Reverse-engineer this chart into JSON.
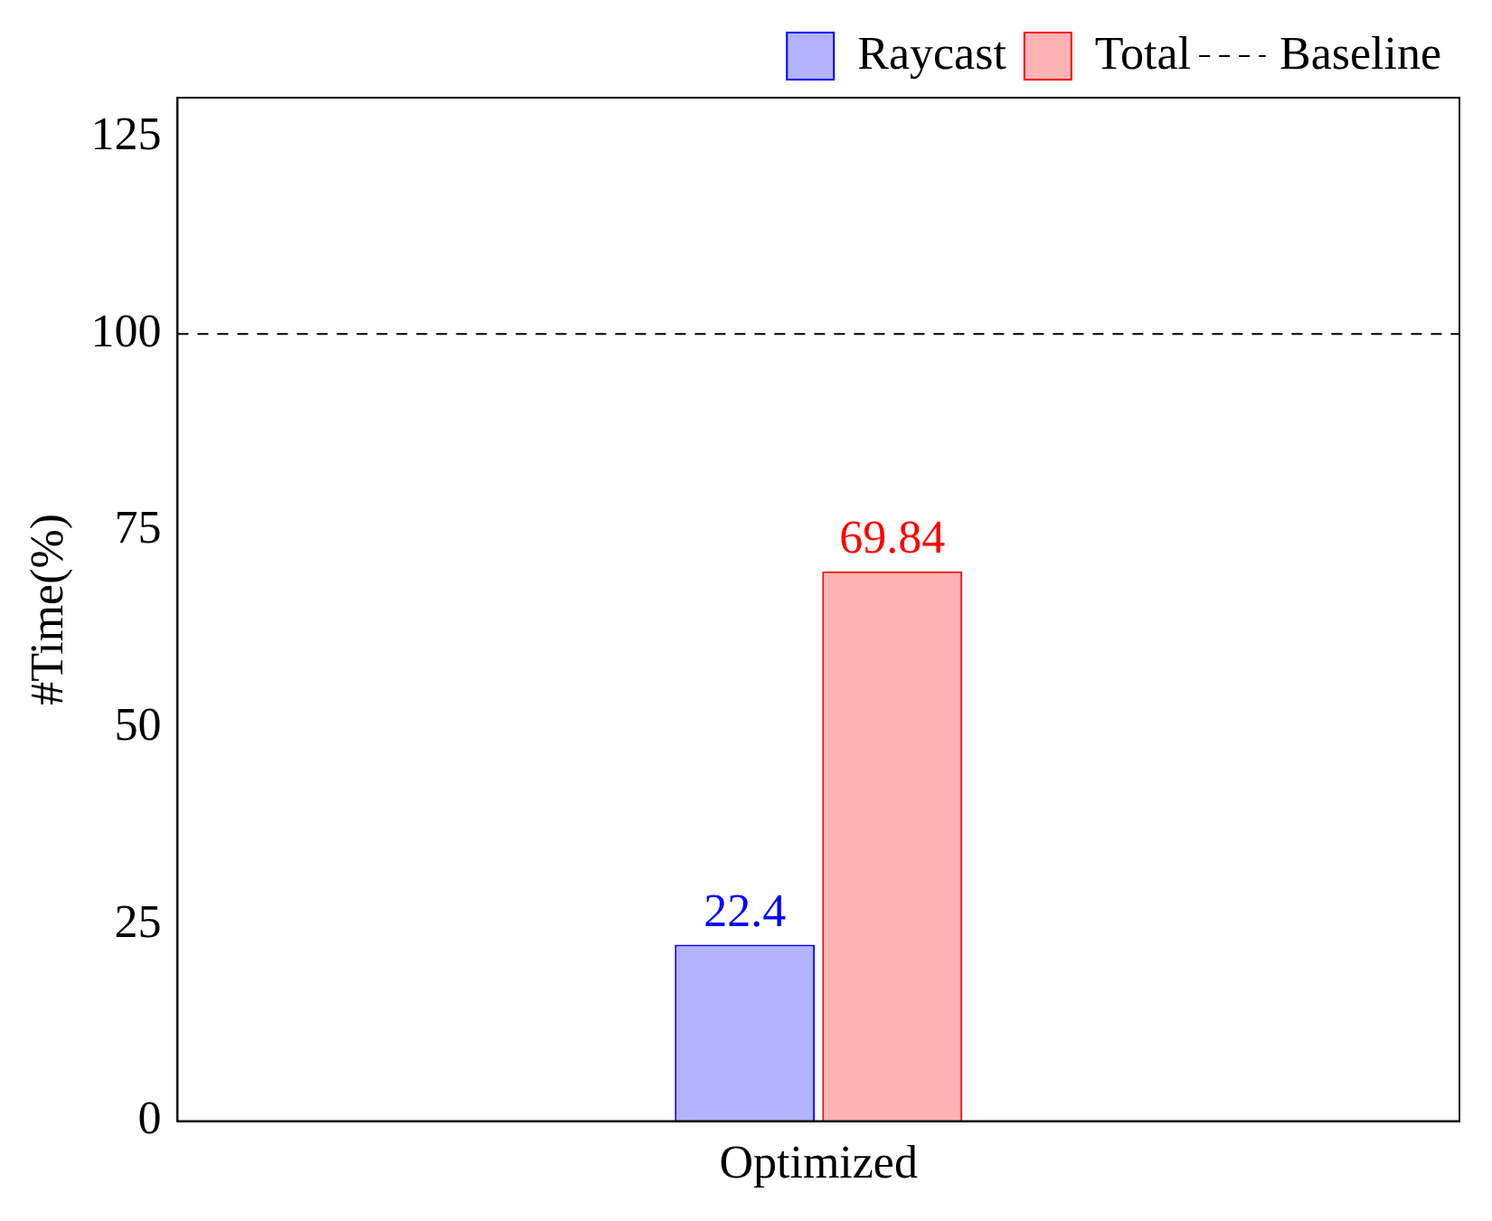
{
  "chart_data": {
    "type": "bar",
    "ylabel": "#Time(%)",
    "categories": [
      "Optimized"
    ],
    "series": [
      {
        "name": "Raycast",
        "color": "#b3b3ff",
        "values": [
          22.4
        ]
      },
      {
        "name": "Total",
        "color": "#ffb3b3",
        "values": [
          69.84
        ]
      }
    ],
    "ylim": [
      0,
      130
    ],
    "yticks": [
      0,
      25,
      50,
      75,
      100,
      125
    ],
    "ref_lines": [
      {
        "axis": "y",
        "value": 100,
        "label": "Baseline",
        "color": "#000000",
        "line_style": "dashed"
      }
    ],
    "data_labels": true,
    "legend": "top right",
    "grid": false
  }
}
